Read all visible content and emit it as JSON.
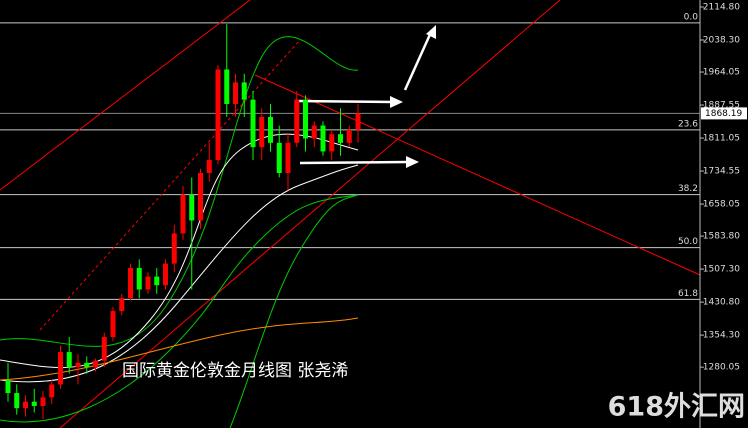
{
  "chart_data": {
    "type": "candlestick",
    "open": [
      1250,
      1220,
      1185,
      1200,
      1190,
      1210,
      1240,
      1315,
      1280,
      1290,
      1280,
      1295,
      1350,
      1410,
      1440,
      1510,
      1460,
      1490,
      1470,
      1520,
      1590,
      1680,
      1620,
      1730,
      1760,
      1970,
      1890,
      1940,
      1900,
      1790,
      1860,
      1800,
      1730,
      1800,
      1900,
      1810,
      1840,
      1780,
      1820,
      1800,
      1830
    ],
    "high": [
      1290,
      1240,
      1215,
      1230,
      1225,
      1250,
      1330,
      1350,
      1310,
      1305,
      1300,
      1360,
      1420,
      1450,
      1520,
      1530,
      1500,
      1510,
      1530,
      1610,
      1700,
      1720,
      1740,
      1800,
      1980,
      2075,
      1960,
      1960,
      1920,
      1880,
      1890,
      1840,
      1820,
      1920,
      1910,
      1850,
      1850,
      1830,
      1880,
      1840,
      1890
    ],
    "low": [
      1200,
      1170,
      1165,
      1175,
      1160,
      1195,
      1230,
      1265,
      1240,
      1265,
      1270,
      1280,
      1340,
      1400,
      1435,
      1440,
      1450,
      1450,
      1460,
      1500,
      1575,
      1460,
      1600,
      1710,
      1750,
      1860,
      1860,
      1860,
      1760,
      1760,
      1780,
      1720,
      1690,
      1790,
      1780,
      1790,
      1770,
      1760,
      1770,
      1790,
      1800
    ],
    "close": [
      1220,
      1185,
      1200,
      1190,
      1210,
      1240,
      1315,
      1280,
      1290,
      1280,
      1295,
      1350,
      1410,
      1440,
      1510,
      1460,
      1490,
      1470,
      1520,
      1590,
      1680,
      1620,
      1730,
      1760,
      1970,
      1890,
      1940,
      1900,
      1790,
      1860,
      1800,
      1730,
      1800,
      1900,
      1810,
      1840,
      1780,
      1820,
      1800,
      1830,
      1868.19
    ],
    "up_color": "#ff0000",
    "down_color": "#00ff00",
    "ylim": [
      1139,
      2131
    ],
    "yticks": [
      {
        "value": 2114.8,
        "label": "2114.80"
      },
      {
        "value": 2038.3,
        "label": "2038.30"
      },
      {
        "value": 1964.05,
        "label": "1964.05"
      },
      {
        "value": 1887.55,
        "label": "1887.55"
      },
      {
        "value": 1811.05,
        "label": "1811.05"
      },
      {
        "value": 1734.55,
        "label": "1734.55"
      },
      {
        "value": 1658.05,
        "label": "1658.05"
      },
      {
        "value": 1583.8,
        "label": "1583.80"
      },
      {
        "value": 1507.3,
        "label": "1507.30"
      },
      {
        "value": 1430.8,
        "label": "1430.80"
      },
      {
        "value": 1354.3,
        "label": "1354.30"
      },
      {
        "value": 1280.05,
        "label": "1280.05"
      }
    ],
    "current_price": 1868.19,
    "fib_levels": [
      {
        "value": 2078,
        "label": "0.0"
      },
      {
        "value": 1830,
        "label": "23.6"
      },
      {
        "value": 1680,
        "label": "38.2"
      },
      {
        "value": 1557,
        "label": "50.0"
      },
      {
        "value": 1437,
        "label": "61.8"
      }
    ],
    "caption": "国际黄金伦敦金月线图  张尧浠"
  },
  "watermark": "618外汇网"
}
